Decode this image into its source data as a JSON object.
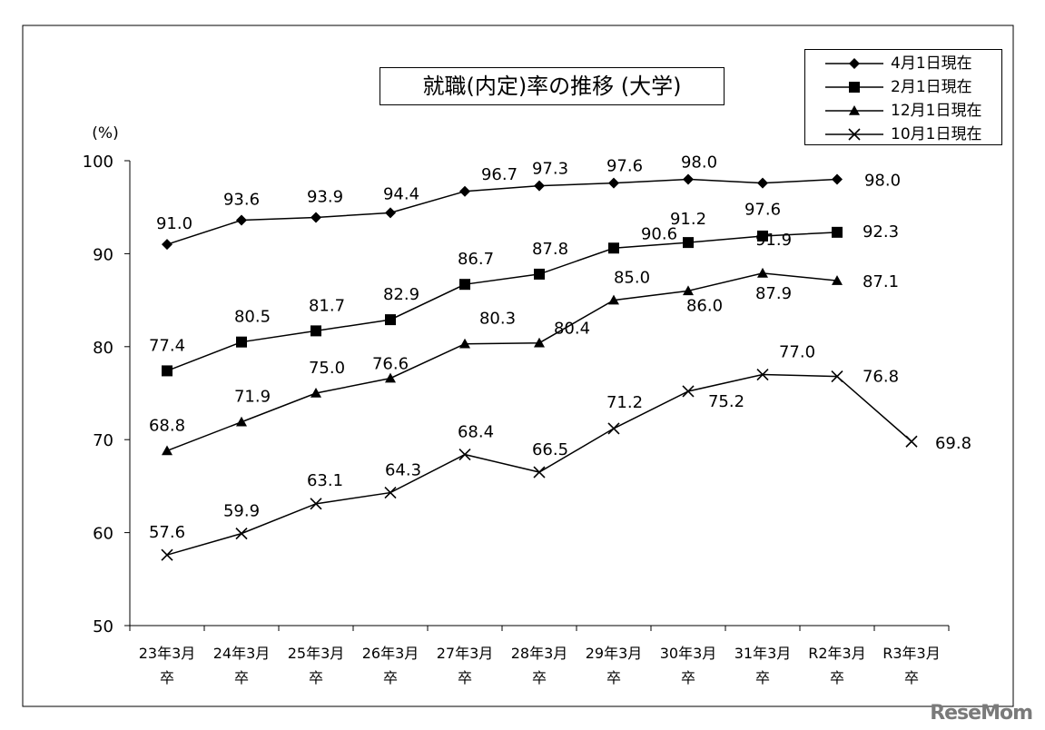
{
  "chart_data": {
    "type": "line",
    "title": "就職(内定)率の推移 (大学)",
    "ylabel": "(%)",
    "ylim": [
      50,
      100
    ],
    "yticks": [
      50,
      60,
      70,
      80,
      90,
      100
    ],
    "categories": [
      {
        "line1": "23年3月",
        "line2": "卒"
      },
      {
        "line1": "24年3月",
        "line2": "卒"
      },
      {
        "line1": "25年3月",
        "line2": "卒"
      },
      {
        "line1": "26年3月",
        "line2": "卒"
      },
      {
        "line1": "27年3月",
        "line2": "卒"
      },
      {
        "line1": "28年3月",
        "line2": "卒"
      },
      {
        "line1": "29年3月",
        "line2": "卒"
      },
      {
        "line1": "30年3月",
        "line2": "卒"
      },
      {
        "line1": "31年3月",
        "line2": "卒"
      },
      {
        "line1": "R2年3月",
        "line2": "卒"
      },
      {
        "line1": "R3年3月",
        "line2": "卒"
      }
    ],
    "legend_position": "top-right",
    "grid": false,
    "series": [
      {
        "name": "4月1日現在",
        "marker": "diamond",
        "values": [
          91.0,
          93.6,
          93.9,
          94.4,
          96.7,
          97.3,
          97.6,
          98.0,
          97.6,
          98.0,
          null
        ]
      },
      {
        "name": "2月1日現在",
        "marker": "square",
        "values": [
          77.4,
          80.5,
          81.7,
          82.9,
          86.7,
          87.8,
          90.6,
          91.2,
          91.9,
          92.3,
          null
        ]
      },
      {
        "name": "12月1日現在",
        "marker": "triangle",
        "values": [
          68.8,
          71.9,
          75.0,
          76.6,
          80.3,
          80.4,
          85.0,
          86.0,
          87.9,
          87.1,
          null
        ]
      },
      {
        "name": "10月1日現在",
        "marker": "cross",
        "values": [
          57.6,
          59.9,
          63.1,
          64.3,
          68.4,
          66.5,
          71.2,
          75.2,
          77.0,
          76.8,
          69.8
        ]
      }
    ]
  },
  "watermark": "ReseMom"
}
